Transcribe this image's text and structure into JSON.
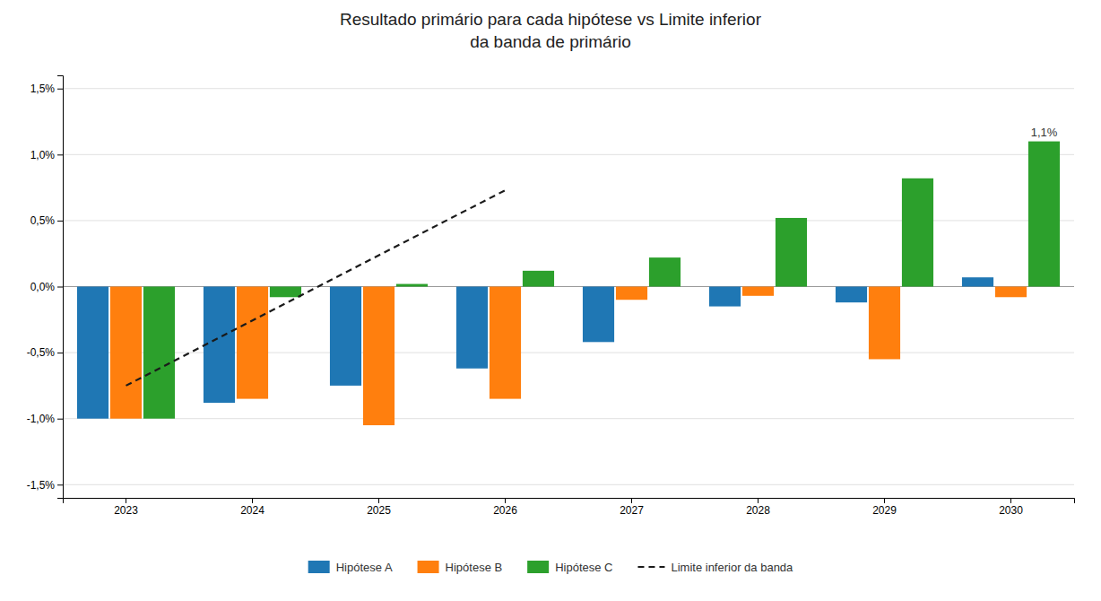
{
  "chart_data": {
    "type": "bar",
    "title": "Resultado primário para cada hipótese vs Limite inferior\nda banda de primário",
    "categories": [
      2023,
      2024,
      2025,
      2026,
      2027,
      2028,
      2029,
      2030
    ],
    "series": [
      {
        "name": "Hipótese A",
        "values": [
          -1.0,
          -0.88,
          -0.75,
          -0.62,
          -0.42,
          -0.15,
          -0.12,
          0.07
        ]
      },
      {
        "name": "Hipótese B",
        "values": [
          -1.0,
          -0.85,
          -1.05,
          -0.85,
          -0.1,
          -0.07,
          -0.55,
          -0.08
        ]
      },
      {
        "name": "Hipótese C",
        "values": [
          -1.0,
          -0.08,
          0.02,
          0.12,
          0.22,
          0.52,
          0.82,
          1.1
        ]
      },
      {
        "name": "Limite inferior da banda",
        "type": "line",
        "line_style": "dashed",
        "color": "#1A1A1A",
        "x": [
          2023,
          2026
        ],
        "values": [
          -0.75,
          0.73
        ]
      }
    ],
    "ylim": [
      -1.6,
      1.6
    ],
    "yticks": [
      {
        "value": -1.5,
        "label": "-1,5%"
      },
      {
        "value": -1.0,
        "label": "-1,0%"
      },
      {
        "value": -0.5,
        "label": "-0,5%"
      },
      {
        "value": 0.0,
        "label": "0,0%"
      },
      {
        "value": 0.5,
        "label": "0,5%"
      },
      {
        "value": 1.0,
        "label": "1,0%"
      },
      {
        "value": 1.5,
        "label": "1,5%"
      }
    ],
    "grid": true,
    "legend": "bottom",
    "annotations": [
      {
        "text": "1,1%",
        "x": 2030,
        "y": 1.1
      }
    ]
  }
}
